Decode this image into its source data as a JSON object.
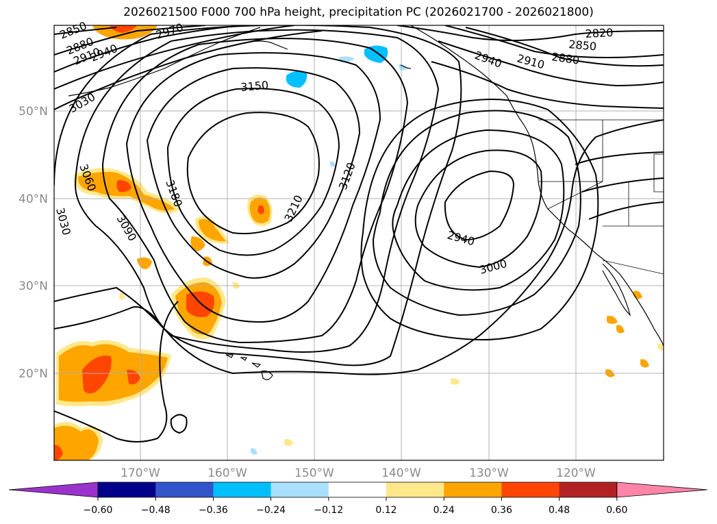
{
  "title": "2026021500 F000 700 hPa height, precipitation PC (2026021700 - 2026021800)",
  "lat_labels": [
    "50°N",
    "40°N",
    "30°N",
    "20°N"
  ],
  "lon_labels": [
    "170°W",
    "160°W",
    "150°W",
    "140°W",
    "130°W",
    "120°W"
  ],
  "contour_labels": [
    "2850",
    "2880",
    "2910",
    "2940",
    "2970",
    "3030",
    "3150",
    "3060",
    "3030",
    "3180",
    "3090",
    "3210",
    "3120",
    "2940",
    "3000",
    "2940",
    "2910",
    "2880",
    "2850",
    "2820"
  ],
  "colorbar": {
    "ticks": [
      "−0.60",
      "−0.48",
      "−0.36",
      "−0.24",
      "−0.12",
      "0.12",
      "0.24",
      "0.36",
      "0.48",
      "0.60"
    ],
    "colors": [
      "#9933cc",
      "#00008b",
      "#3355cc",
      "#00bfff",
      "#aadfff",
      "#ffffff",
      "#ffe88a",
      "#ffa500",
      "#ff4500",
      "#b22222",
      "#ff85a8"
    ]
  }
}
